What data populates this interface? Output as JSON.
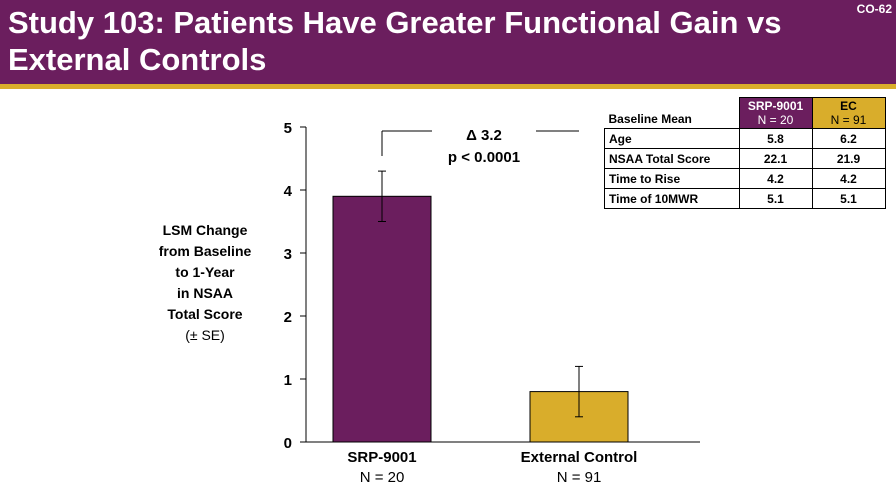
{
  "header": {
    "title": "Study 103: Patients Have Greater Functional Gain vs External Controls",
    "slide_id": "CO-62"
  },
  "colors": {
    "header_bg": "#6b1e5e",
    "accent_gold": "#d9ad2b",
    "srp_bar": "#6b1e5e",
    "ec_bar": "#d9ad2b"
  },
  "chart_data": {
    "type": "bar",
    "categories": [
      "SRP-9001",
      "External Control"
    ],
    "category_n": [
      "N = 20",
      "N = 91"
    ],
    "values": [
      3.9,
      0.8
    ],
    "error_se": [
      0.4,
      0.4
    ],
    "bar_colors": [
      "#6b1e5e",
      "#d9ad2b"
    ],
    "ylabel_lines": [
      "LSM Change",
      "from Baseline",
      "to 1-Year",
      "in NSAA",
      "Total Score"
    ],
    "ylabel_note": "(± SE)",
    "ylim": [
      0,
      5
    ],
    "yticks": [
      "0",
      "1",
      "2",
      "3",
      "4",
      "5"
    ],
    "grid": false,
    "annotation": {
      "delta": "Δ 3.2",
      "p_value": "p < 0.0001"
    }
  },
  "baseline_table": {
    "header_label": "Baseline Mean",
    "columns": [
      {
        "name": "SRP-9001",
        "n": "N = 20"
      },
      {
        "name": "EC",
        "n": "N = 91"
      }
    ],
    "rows": [
      {
        "label": "Age",
        "srp": "5.8",
        "ec": "6.2"
      },
      {
        "label": "NSAA Total Score",
        "srp": "22.1",
        "ec": "21.9"
      },
      {
        "label": "Time to Rise",
        "srp": "4.2",
        "ec": "4.2"
      },
      {
        "label": "Time of 10MWR",
        "srp": "5.1",
        "ec": "5.1"
      }
    ]
  }
}
